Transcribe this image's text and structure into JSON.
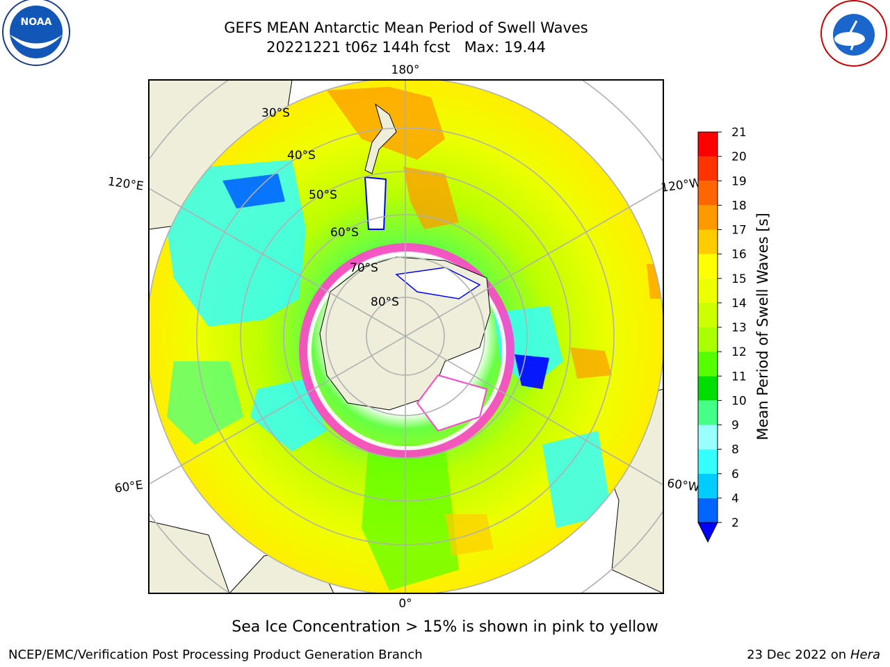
{
  "header": {
    "title_line1": "GEFS MEAN Antarctic Mean Period of Swell Waves",
    "title_line2": "20221221 t06z 144h fcst   Max: 19.44"
  },
  "logos": {
    "left": {
      "name": "noaa-logo",
      "text": "NOAA"
    },
    "right": {
      "name": "nws-logo",
      "text": "NATIONAL WEATHER SERVICE"
    }
  },
  "map": {
    "projection": "south-polar-stereographic",
    "longitude_labels": {
      "top": "180°",
      "bottom": "0°",
      "left_upper": "120°E",
      "right_upper": "120°W",
      "left_lower": "60°E",
      "right_lower": "60°W"
    },
    "latitude_labels": [
      "30°S",
      "40°S",
      "50°S",
      "60°S",
      "70°S",
      "80°S"
    ],
    "gridlines": true,
    "colors": {
      "land": "#efeedb",
      "grid": "#b0b0b0",
      "ice_pink": "#ff44cc",
      "ice_white": "#ffffff"
    }
  },
  "colorbar": {
    "title": "Mean Period of Swell Waves [s]",
    "ticks": [
      "2",
      "4",
      "6",
      "8",
      "9",
      "10",
      "11",
      "12",
      "13",
      "14",
      "15",
      "16",
      "17",
      "18",
      "19",
      "20",
      "21"
    ],
    "colors": [
      "#0066ff",
      "#00ccff",
      "#33ffff",
      "#99ffff",
      "#44ff88",
      "#00dd00",
      "#55ff00",
      "#aaff00",
      "#ccff00",
      "#eeff00",
      "#ffff00",
      "#ffcc00",
      "#ff9900",
      "#ff6600",
      "#ff3300",
      "#ff0000"
    ],
    "under_color": "#0000ff"
  },
  "caption": "Sea Ice Concentration > 15% is shown in pink to yellow",
  "footer": {
    "left": "NCEP/EMC/Verification Post Processing Product Generation Branch",
    "right_date": "23 Dec 2022 on",
    "right_host": "Hera"
  }
}
